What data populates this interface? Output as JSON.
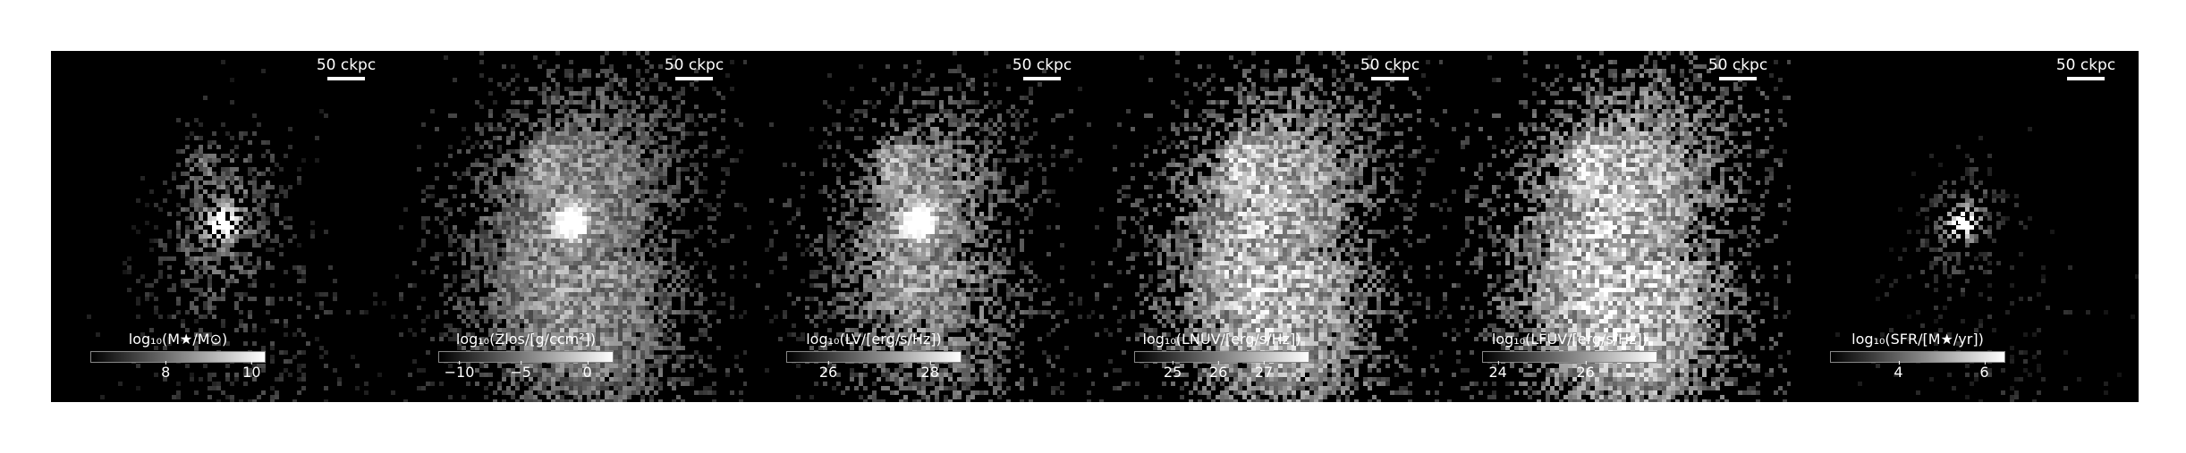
{
  "figure": {
    "scalebar_label": "50 ckpc",
    "panels": [
      {
        "id": "stellar-mass",
        "colorbar_label": "log₁₀(M★/M⊙)",
        "ticks": [
          {
            "label": "8",
            "pos": 0.43
          },
          {
            "label": "10",
            "pos": 0.92
          }
        ],
        "map": {
          "spread": 0.55,
          "brightness": 0.55,
          "bright_core": true,
          "extra_blob": true
        }
      },
      {
        "id": "metallicity",
        "colorbar_label": "log₁₀(Zlos/[g/ccm²])",
        "ticks": [
          {
            "label": "−10",
            "pos": 0.12
          },
          {
            "label": "−5",
            "pos": 0.47
          },
          {
            "label": "0",
            "pos": 0.85
          }
        ],
        "map": {
          "spread": 1.0,
          "brightness": 0.7,
          "bright_core": true,
          "extra_blob": true
        }
      },
      {
        "id": "lum-v",
        "colorbar_label": "log₁₀(LV/[erg/s/Hz])",
        "ticks": [
          {
            "label": "26",
            "pos": 0.24
          },
          {
            "label": "28",
            "pos": 0.82
          }
        ],
        "map": {
          "spread": 0.85,
          "brightness": 0.75,
          "bright_core": true,
          "extra_blob": true
        }
      },
      {
        "id": "lum-nuv",
        "colorbar_label": "log₁₀(LNUV/[erg/s/Hz])",
        "ticks": [
          {
            "label": "25",
            "pos": 0.22
          },
          {
            "label": "26",
            "pos": 0.48
          },
          {
            "label": "27",
            "pos": 0.74
          }
        ],
        "map": {
          "spread": 1.0,
          "brightness": 0.9,
          "bright_core": false,
          "extra_blob": true
        }
      },
      {
        "id": "lum-fuv",
        "colorbar_label": "log₁₀(LFUV/[erg/s/Hz])",
        "ticks": [
          {
            "label": "24",
            "pos": 0.09
          },
          {
            "label": "26",
            "pos": 0.59
          }
        ],
        "map": {
          "spread": 1.05,
          "brightness": 0.95,
          "bright_core": false,
          "extra_blob": true
        }
      },
      {
        "id": "sfr",
        "colorbar_label": "log₁₀(SFR/[M★/yr])",
        "ticks": [
          {
            "label": "4",
            "pos": 0.39
          },
          {
            "label": "6",
            "pos": 0.88
          }
        ],
        "map": {
          "spread": 0.4,
          "brightness": 0.45,
          "bright_core": true,
          "extra_blob": false
        }
      }
    ]
  }
}
